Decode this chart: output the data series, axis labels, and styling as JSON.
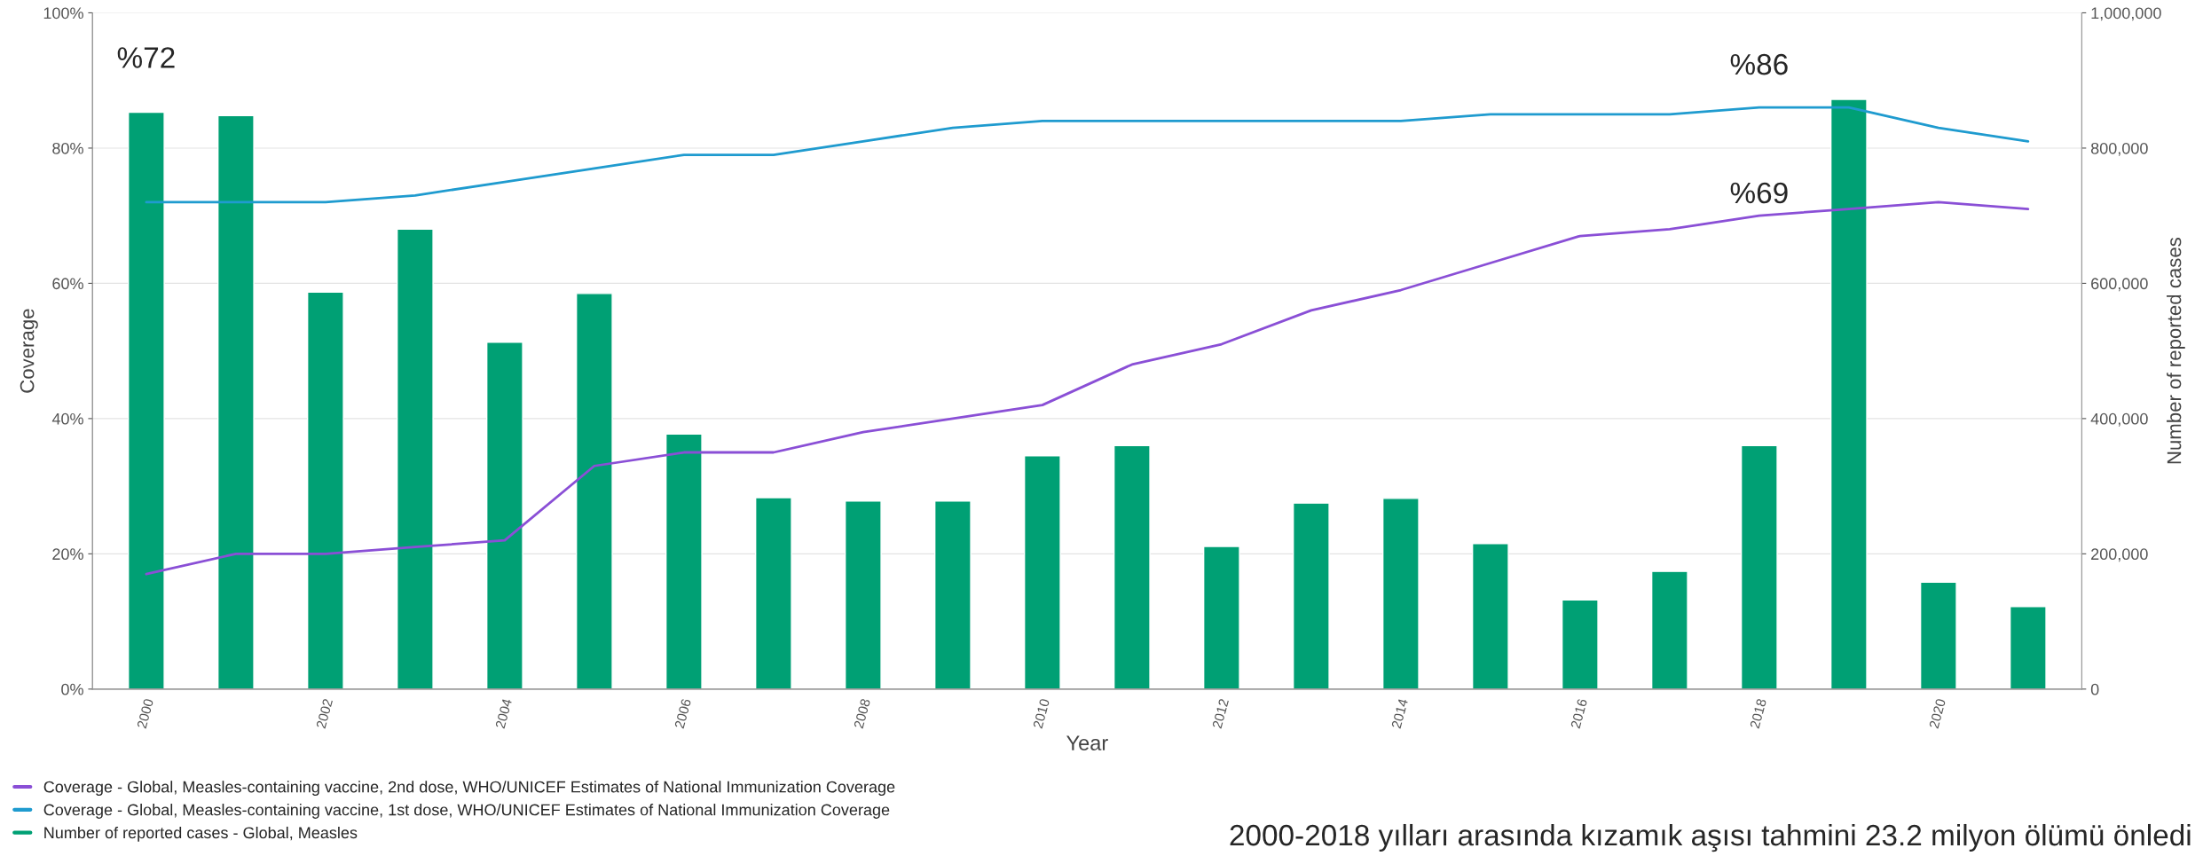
{
  "chart_data": {
    "type": "line",
    "xlabel": "Year",
    "ylabel": "Coverage",
    "y2label": "Number of reported cases",
    "categories": [
      "2000",
      null,
      "2002",
      null,
      "2004",
      null,
      "2006",
      null,
      "2008",
      null,
      "2010",
      null,
      "2012",
      null,
      "2014",
      null,
      "2016",
      null,
      "2018",
      null,
      "2020",
      null
    ],
    "series": [
      {
        "name": "Coverage - Global, Measles-containing vaccine, 2nd dose, WHO/UNICEF Estimates of National Immunization Coverage",
        "color": "#8a4fd6",
        "values": [
          17,
          20,
          20,
          21,
          22,
          33,
          35,
          35,
          38,
          40,
          42,
          48,
          51,
          56,
          59,
          63,
          67,
          68,
          70,
          71,
          72,
          71
        ]
      },
      {
        "name": "Coverage - Global, Measles-containing vaccine, 1st dose, WHO/UNICEF Estimates of National Immunization Coverage",
        "color": "#1f9bcf",
        "values": [
          72,
          72,
          72,
          73,
          75,
          77,
          79,
          79,
          81,
          83,
          84,
          84,
          84,
          84,
          84,
          85,
          85,
          85,
          86,
          86,
          83,
          81
        ]
      },
      {
        "name": "Number of reported cases - Global, Measles",
        "type": "bar",
        "axis": "y2",
        "color": "#00a074",
        "values": [
          853000,
          848000,
          587000,
          680000,
          513000,
          585000,
          377000,
          283000,
          278000,
          278000,
          345000,
          360000,
          211000,
          275000,
          282000,
          215000,
          132000,
          174000,
          360000,
          872000,
          158000,
          122000
        ]
      }
    ],
    "ylim": [
      0,
      100
    ],
    "yticks": [
      {
        "value": 0,
        "label": "0%"
      },
      {
        "value": 20,
        "label": "20%"
      },
      {
        "value": 40,
        "label": "40%"
      },
      {
        "value": 60,
        "label": "60%"
      },
      {
        "value": 80,
        "label": "80%"
      },
      {
        "value": 100,
        "label": "100%"
      }
    ],
    "y2lim": [
      0,
      1000000
    ],
    "y2ticks": [
      0,
      {
        "value": 200000,
        "label": "200,000"
      },
      {
        "value": 400000,
        "label": "400,000"
      },
      {
        "value": 600000,
        "label": "600,000"
      },
      {
        "value": 800000,
        "label": "800,000"
      },
      {
        "value": 1000000,
        "label": "1,000,000"
      }
    ],
    "grid": "y",
    "legend": "bottom left",
    "annotations": [
      "%72",
      "%86",
      "%69",
      "2000-2018 yılları arasında kızamık aşısı tahmini 23.2 milyon ölümü önledi"
    ]
  }
}
